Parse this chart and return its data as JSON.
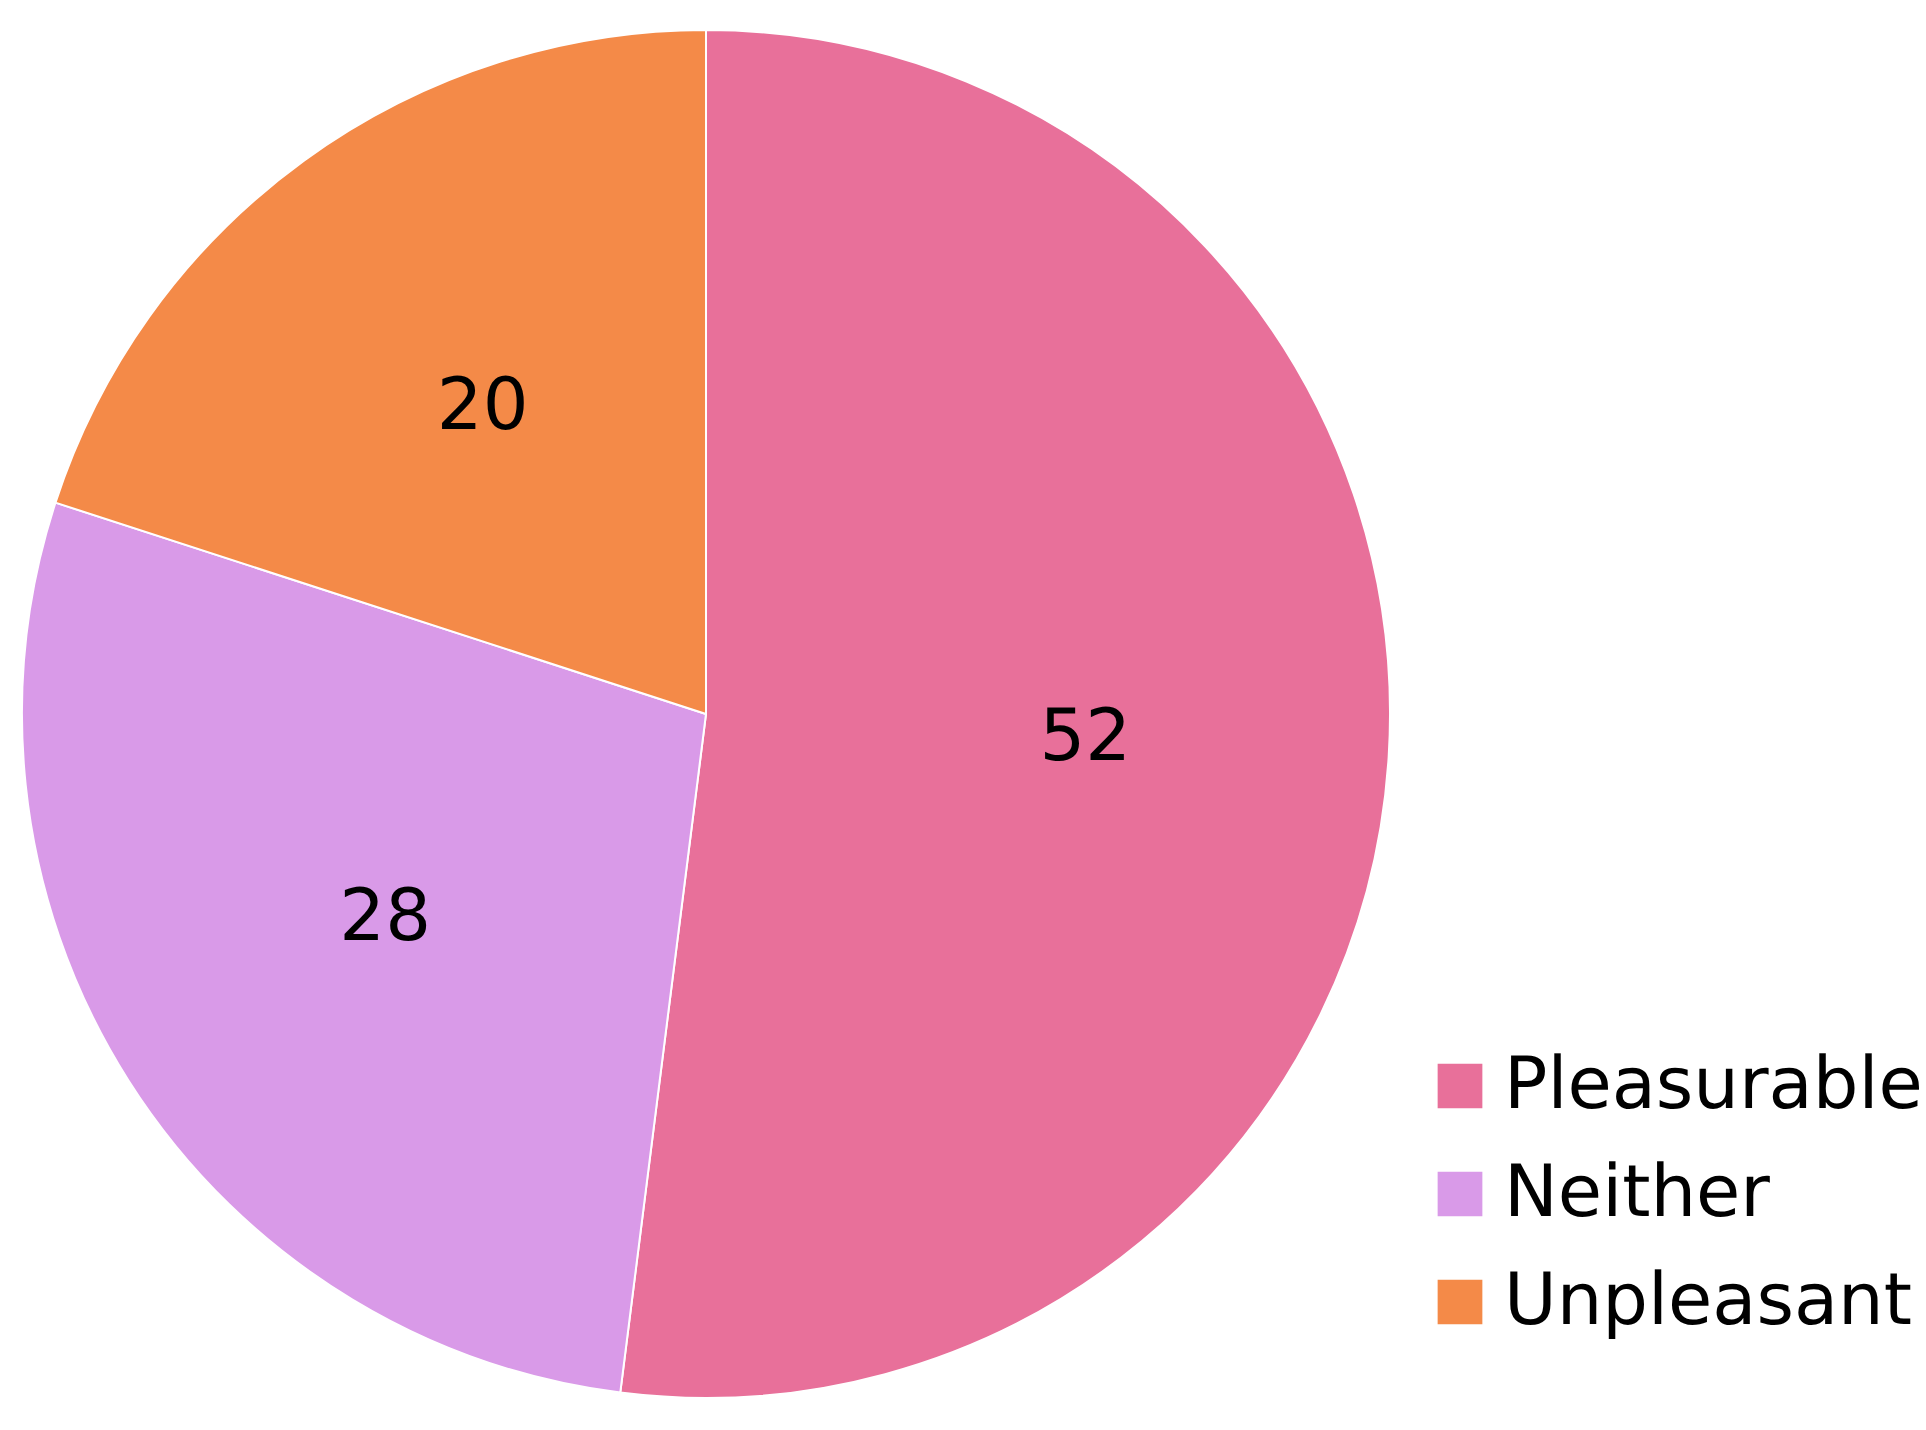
{
  "chart_data": {
    "type": "pie",
    "categories": [
      "Pleasurable",
      "Neither",
      "Unpleasant"
    ],
    "values": [
      52,
      28,
      20
    ],
    "colors": [
      "#e8709a",
      "#d99ae8",
      "#f48a48"
    ],
    "data_labels": true,
    "legend": "bottom right"
  }
}
